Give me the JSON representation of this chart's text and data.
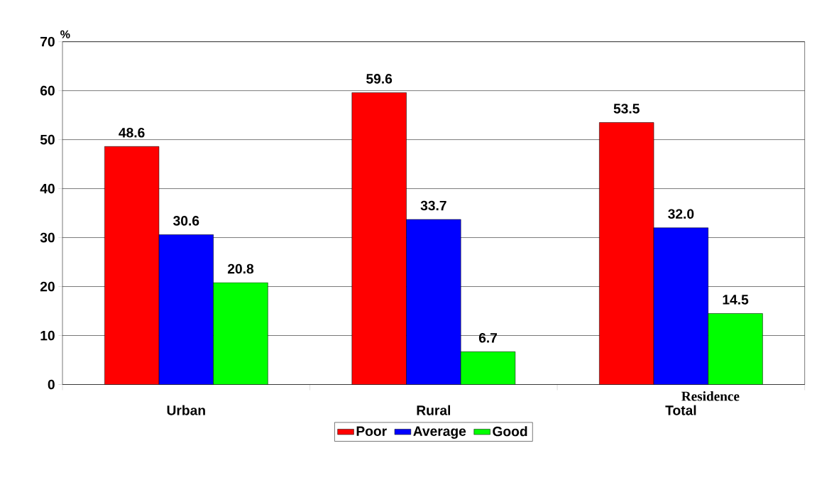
{
  "chart_data": {
    "type": "bar",
    "ylabel": "%",
    "xlabel": "Residence",
    "categories": [
      "Urban",
      "Rural",
      "Total"
    ],
    "series": [
      {
        "name": "Poor",
        "color": "#ff0000",
        "values": [
          48.6,
          59.6,
          53.5
        ],
        "value_labels": [
          "48.6",
          "59.6",
          "53.5"
        ]
      },
      {
        "name": "Average",
        "color": "#0000ff",
        "values": [
          30.6,
          33.7,
          32.0
        ],
        "value_labels": [
          "30.6",
          "33.7",
          "32.0"
        ]
      },
      {
        "name": "Good",
        "color": "#00ff00",
        "values": [
          20.8,
          6.7,
          14.5
        ],
        "value_labels": [
          "20.8",
          "6.7",
          "14.5"
        ]
      }
    ],
    "ylim": [
      0,
      70
    ],
    "yticks": [
      0,
      10,
      20,
      30,
      40,
      50,
      60,
      70
    ],
    "grid": "y",
    "legend": "bottom"
  }
}
